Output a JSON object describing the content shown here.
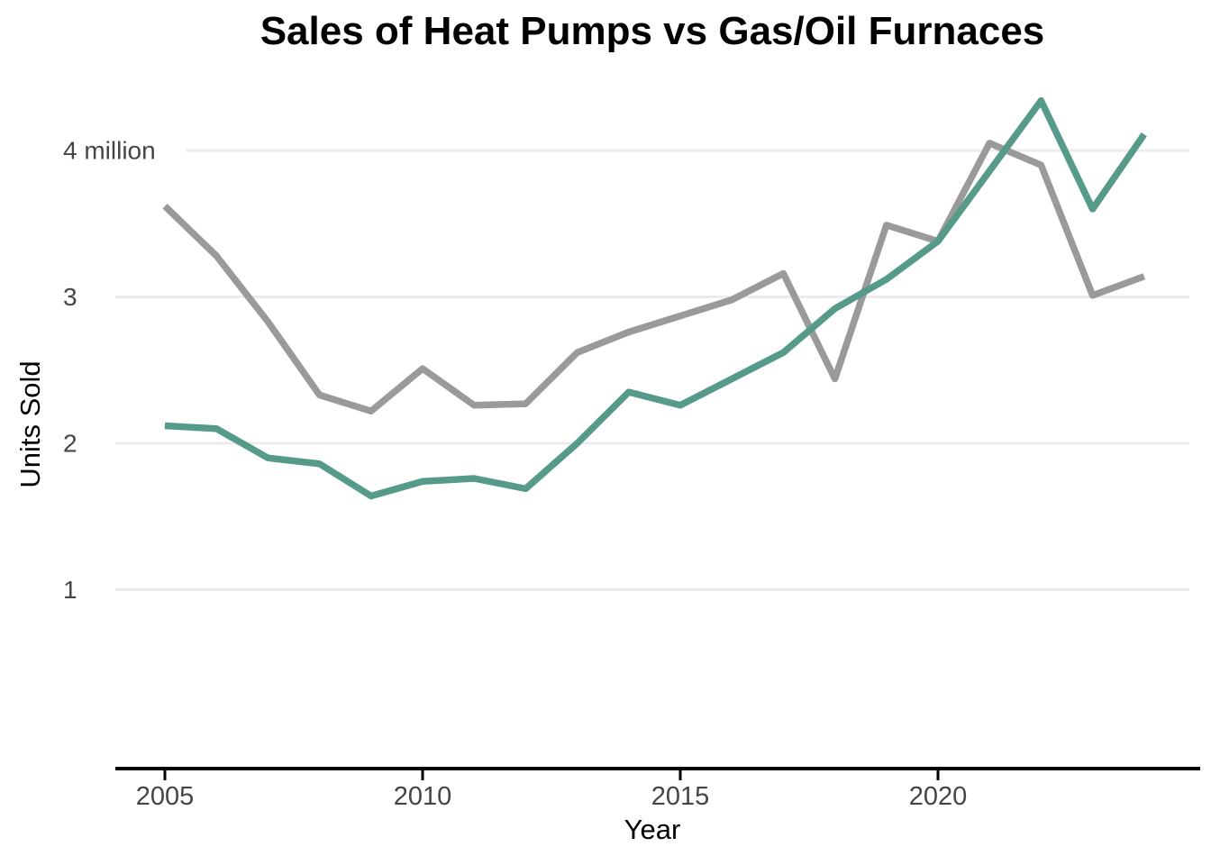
{
  "chart_data": {
    "type": "line",
    "title": "Sales of Heat Pumps vs Gas/Oil Furnaces",
    "xlabel": "Year",
    "ylabel": "Units Sold",
    "x": [
      2005,
      2006,
      2007,
      2008,
      2009,
      2010,
      2011,
      2012,
      2013,
      2014,
      2015,
      2016,
      2017,
      2018,
      2019,
      2020,
      2021,
      2022,
      2023,
      2024
    ],
    "series": [
      {
        "name": "Gas/Oil Furnaces",
        "color": "#9a9a9a",
        "values": [
          3.62,
          3.28,
          2.83,
          2.33,
          2.22,
          2.51,
          2.26,
          2.27,
          2.62,
          2.76,
          2.87,
          2.98,
          3.16,
          2.44,
          3.49,
          3.38,
          4.05,
          3.9,
          3.01,
          3.14
        ]
      },
      {
        "name": "Heat Pumps",
        "color": "#569b8a",
        "values": [
          2.12,
          2.1,
          1.9,
          1.86,
          1.64,
          1.74,
          1.76,
          1.69,
          2.0,
          2.35,
          2.26,
          2.44,
          2.62,
          2.92,
          3.12,
          3.38,
          3.86,
          4.34,
          3.6,
          4.11
        ]
      }
    ],
    "x_ticks": [
      2005,
      2010,
      2015,
      2020
    ],
    "y_ticks": [
      {
        "value": 1,
        "label": "1"
      },
      {
        "value": 2,
        "label": "2"
      },
      {
        "value": 3,
        "label": "3"
      },
      {
        "value": 4,
        "label": "4 million"
      }
    ],
    "xlim": [
      2004,
      2025
    ],
    "ylim": [
      0,
      4.5
    ],
    "units": "million units",
    "legend": "none",
    "grid": "horizontal-only",
    "colors": {
      "grid_line": "#ececec",
      "axis_line": "#000000",
      "tick_label": "#454545",
      "text": "#000000",
      "background": "#ffffff"
    }
  }
}
